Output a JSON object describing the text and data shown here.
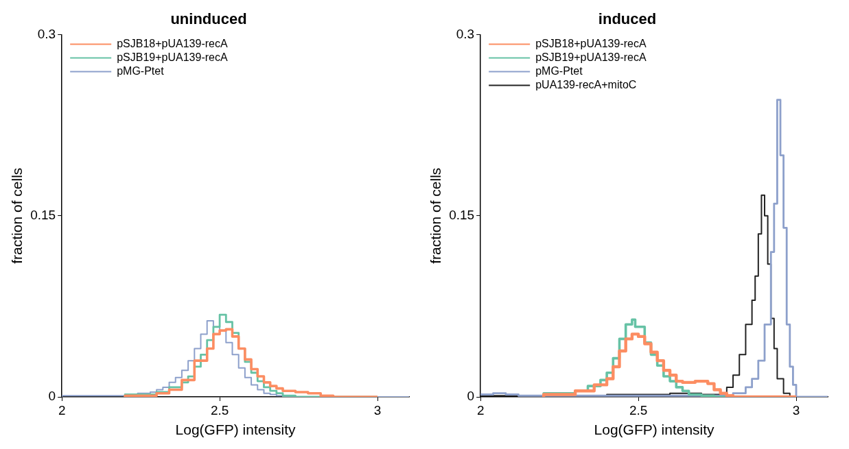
{
  "chart_data": [
    {
      "type": "step",
      "title": "uninduced",
      "xlabel": "Log(GFP) intensity",
      "ylabel": "fraction of cells",
      "xlim": [
        2,
        3.1
      ],
      "xticks": [
        2,
        2.5,
        3
      ],
      "ylim": [
        0,
        0.3
      ],
      "yticks": [
        0,
        0.15,
        0.3
      ],
      "grid": false,
      "legend": "top left",
      "series": [
        {
          "name": "pSJB18+pUA139-recA",
          "color": "#fc8d62",
          "x": [
            2.2,
            2.3,
            2.34,
            2.38,
            2.42,
            2.46,
            2.48,
            2.5,
            2.52,
            2.54,
            2.56,
            2.58,
            2.6,
            2.62,
            2.64,
            2.66,
            2.68,
            2.7,
            2.74,
            2.78,
            2.82,
            2.86,
            2.9,
            3.0
          ],
          "values": [
            0,
            0.001,
            0.003,
            0.006,
            0.014,
            0.03,
            0.04,
            0.052,
            0.055,
            0.056,
            0.05,
            0.04,
            0.031,
            0.023,
            0.017,
            0.012,
            0.009,
            0.007,
            0.005,
            0.004,
            0.003,
            0.001,
            0,
            0
          ]
        },
        {
          "name": "pSJB19+pUA139-recA",
          "color": "#66c2a5",
          "x": [
            2.2,
            2.3,
            2.34,
            2.38,
            2.4,
            2.42,
            2.44,
            2.46,
            2.48,
            2.5,
            2.52,
            2.54,
            2.56,
            2.58,
            2.6,
            2.62,
            2.64,
            2.66,
            2.68,
            2.7,
            2.74,
            2.8,
            3.0
          ],
          "values": [
            0,
            0.002,
            0.004,
            0.008,
            0.012,
            0.017,
            0.025,
            0.035,
            0.047,
            0.058,
            0.068,
            0.062,
            0.053,
            0.04,
            0.029,
            0.02,
            0.013,
            0.008,
            0.005,
            0.003,
            0.001,
            0,
            0
          ]
        },
        {
          "name": "pMG-Ptet",
          "color": "#8da0cb",
          "x": [
            2.0,
            2.2,
            2.24,
            2.28,
            2.3,
            2.32,
            2.34,
            2.36,
            2.38,
            2.4,
            2.42,
            2.44,
            2.46,
            2.48,
            2.5,
            2.52,
            2.54,
            2.56,
            2.58,
            2.6,
            2.62,
            2.64,
            2.66,
            2.68,
            2.7,
            2.74,
            3.1
          ],
          "values": [
            0,
            0.001,
            0.002,
            0.003,
            0.004,
            0.006,
            0.008,
            0.012,
            0.016,
            0.022,
            0.03,
            0.04,
            0.052,
            0.063,
            0.058,
            0.055,
            0.045,
            0.035,
            0.024,
            0.016,
            0.01,
            0.006,
            0.003,
            0.002,
            0.001,
            0,
            0
          ]
        }
      ]
    },
    {
      "type": "step",
      "title": "induced",
      "xlabel": "Log(GFP) intensity",
      "ylabel": "fraction of cells",
      "xlim": [
        2,
        3.1
      ],
      "xticks": [
        2,
        2.5,
        3
      ],
      "ylim": [
        0,
        0.3
      ],
      "yticks": [
        0,
        0.15,
        0.3
      ],
      "grid": false,
      "legend": "top left",
      "series": [
        {
          "name": "pSJB18+pUA139-recA",
          "color": "#fc8d62",
          "x": [
            2.2,
            2.3,
            2.36,
            2.4,
            2.42,
            2.44,
            2.46,
            2.48,
            2.5,
            2.52,
            2.54,
            2.56,
            2.58,
            2.6,
            2.62,
            2.64,
            2.66,
            2.68,
            2.7,
            2.72,
            2.74,
            2.76,
            2.78,
            2.8,
            2.84,
            3.0
          ],
          "values": [
            0,
            0.002,
            0.005,
            0.01,
            0.015,
            0.025,
            0.038,
            0.048,
            0.052,
            0.05,
            0.044,
            0.037,
            0.03,
            0.022,
            0.018,
            0.013,
            0.012,
            0.012,
            0.013,
            0.013,
            0.011,
            0.006,
            0.003,
            0.001,
            0,
            0
          ]
        },
        {
          "name": "pSJB19+pUA139-recA",
          "color": "#66c2a5",
          "x": [
            2.2,
            2.3,
            2.34,
            2.38,
            2.4,
            2.42,
            2.44,
            2.46,
            2.48,
            2.49,
            2.5,
            2.52,
            2.54,
            2.56,
            2.58,
            2.6,
            2.62,
            2.64,
            2.66,
            2.7,
            2.74,
            2.8,
            3.0
          ],
          "values": [
            0.001,
            0.003,
            0.005,
            0.009,
            0.014,
            0.02,
            0.032,
            0.048,
            0.06,
            0.064,
            0.058,
            0.058,
            0.045,
            0.035,
            0.026,
            0.017,
            0.013,
            0.008,
            0.005,
            0.002,
            0.001,
            0,
            0
          ]
        },
        {
          "name": "pMG-Ptet",
          "color": "#8da0cb",
          "x": [
            2.0,
            2.04,
            2.08,
            2.12,
            2.16,
            2.2,
            2.4,
            2.8,
            2.84,
            2.86,
            2.88,
            2.9,
            2.92,
            2.93,
            2.94,
            2.95,
            2.96,
            2.97,
            2.98,
            2.99,
            3.0,
            3.02,
            3.1
          ],
          "values": [
            0.003,
            0.002,
            0.003,
            0.002,
            0.001,
            0.001,
            0.001,
            0.001,
            0.003,
            0.008,
            0.015,
            0.03,
            0.06,
            0.12,
            0.16,
            0.246,
            0.2,
            0.14,
            0.06,
            0.025,
            0.01,
            0,
            0
          ]
        },
        {
          "name": "pUA139-recA+mitoC",
          "color": "#222222",
          "x": [
            2.0,
            2.4,
            2.6,
            2.7,
            2.76,
            2.78,
            2.8,
            2.82,
            2.84,
            2.86,
            2.87,
            2.88,
            2.89,
            2.9,
            2.91,
            2.92,
            2.93,
            2.94,
            2.96,
            2.98,
            3.0,
            3.1
          ],
          "values": [
            0,
            0.001,
            0.002,
            0.003,
            0.002,
            0.003,
            0.008,
            0.018,
            0.035,
            0.06,
            0.08,
            0.1,
            0.135,
            0.167,
            0.15,
            0.11,
            0.065,
            0.04,
            0.015,
            0.003,
            0,
            0
          ]
        }
      ]
    }
  ]
}
